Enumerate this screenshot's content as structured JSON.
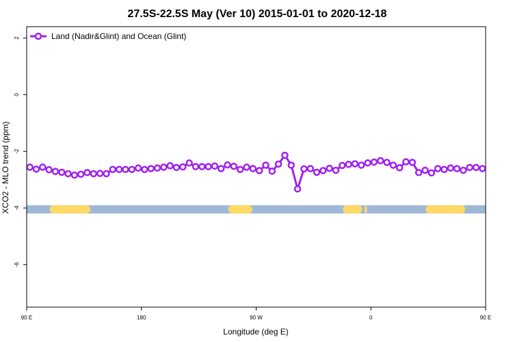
{
  "chart_data": {
    "type": "line",
    "title": "27.5S-22.5S May (Ver 10)   2015-01-01 to 2020-12-18",
    "xlabel": "Longitude (deg E)",
    "ylabel": "XCO2 - MLO trend (ppm)",
    "xlim": [
      90,
      450
    ],
    "ylim": [
      -7.5,
      2.4
    ],
    "x_ticks": [
      {
        "value": 90,
        "label": "90 E"
      },
      {
        "value": 180,
        "label": "180"
      },
      {
        "value": 270,
        "label": "90 W"
      },
      {
        "value": 360,
        "label": "0"
      },
      {
        "value": 450,
        "label": "90 E"
      }
    ],
    "y_ticks": [
      {
        "value": 2,
        "label": "2"
      },
      {
        "value": 0,
        "label": "0"
      },
      {
        "value": -2,
        "label": "-2"
      },
      {
        "value": -4,
        "label": "-4"
      },
      {
        "value": -6,
        "label": "-6"
      }
    ],
    "grid": false,
    "legend_position": "top-left",
    "series": [
      {
        "name": "Land (Nadir&Glint) and Ocean (Glint)",
        "color": "#a020f0",
        "marker": "open-circle",
        "x": [
          92.5,
          97.5,
          102.5,
          107.5,
          112.5,
          117.5,
          122.5,
          127.5,
          132.5,
          137.5,
          142.5,
          147.5,
          152.5,
          157.5,
          162.5,
          167.5,
          172.5,
          177.5,
          182.5,
          187.5,
          192.5,
          197.5,
          202.5,
          207.5,
          212.5,
          217.5,
          222.5,
          227.5,
          232.5,
          237.5,
          242.5,
          247.5,
          252.5,
          257.5,
          262.5,
          267.5,
          272.5,
          277.5,
          282.5,
          287.5,
          292.5,
          297.5,
          302.5,
          307.5,
          312.5,
          317.5,
          322.5,
          327.5,
          332.5,
          337.5,
          342.5,
          347.5,
          352.5,
          357.5,
          362.5,
          367.5,
          372.5,
          377.5,
          382.5,
          387.5,
          392.5,
          397.5,
          402.5,
          407.5,
          412.5,
          417.5,
          422.5,
          427.5,
          432.5,
          437.5,
          442.5,
          447.5
        ],
        "y": [
          -2.56,
          -2.63,
          -2.56,
          -2.65,
          -2.71,
          -2.74,
          -2.79,
          -2.84,
          -2.81,
          -2.75,
          -2.79,
          -2.78,
          -2.79,
          -2.64,
          -2.64,
          -2.64,
          -2.64,
          -2.59,
          -2.64,
          -2.61,
          -2.59,
          -2.56,
          -2.51,
          -2.57,
          -2.55,
          -2.41,
          -2.54,
          -2.54,
          -2.54,
          -2.52,
          -2.61,
          -2.48,
          -2.53,
          -2.64,
          -2.56,
          -2.61,
          -2.68,
          -2.49,
          -2.7,
          -2.45,
          -2.14,
          -2.49,
          -3.33,
          -2.62,
          -2.61,
          -2.74,
          -2.68,
          -2.6,
          -2.67,
          -2.5,
          -2.46,
          -2.44,
          -2.49,
          -2.41,
          -2.38,
          -2.33,
          -2.39,
          -2.49,
          -2.58,
          -2.37,
          -2.39,
          -2.75,
          -2.67,
          -2.76,
          -2.61,
          -2.64,
          -2.59,
          -2.61,
          -2.67,
          -2.57,
          -2.57,
          -2.61
        ]
      }
    ],
    "surface_strip": {
      "y": -4.05,
      "ocean_color": "#9fb8d8",
      "land_color": "#ffd966",
      "land_segments": [
        [
          108,
          140
        ],
        [
          248,
          267
        ],
        [
          338,
          353
        ],
        [
          355,
          357
        ],
        [
          403,
          434
        ]
      ]
    }
  }
}
